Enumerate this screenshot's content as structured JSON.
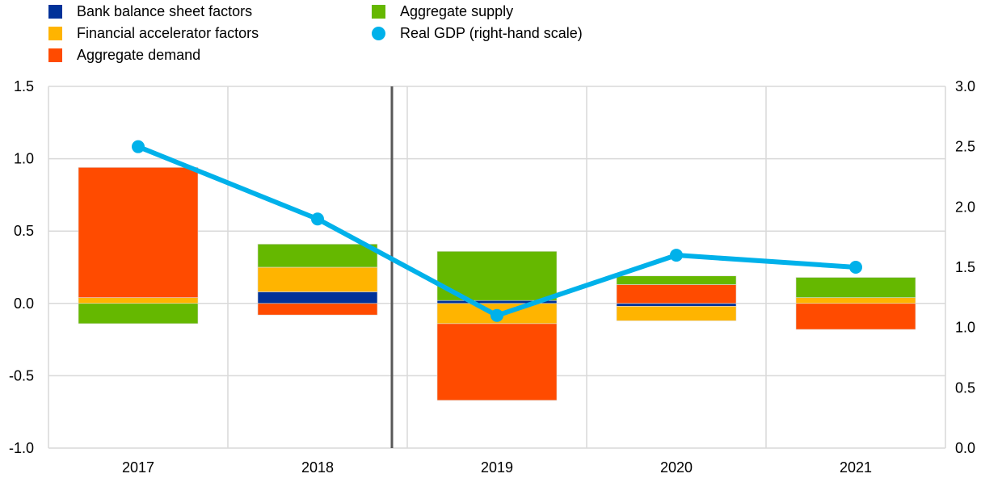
{
  "chart_data": {
    "type": "bar",
    "categories": [
      "2017",
      "2018",
      "2019",
      "2020",
      "2021"
    ],
    "series": [
      {
        "name": "Bank balance sheet factors",
        "color": "#003299",
        "values": [
          0.0,
          0.08,
          0.02,
          -0.02,
          0.0
        ]
      },
      {
        "name": "Financial accelerator factors",
        "color": "#ffb400",
        "values": [
          0.04,
          0.17,
          -0.14,
          -0.1,
          0.04
        ]
      },
      {
        "name": "Aggregate demand",
        "color": "#ff4b00",
        "values": [
          0.9,
          -0.08,
          -0.53,
          0.13,
          -0.18
        ]
      },
      {
        "name": "Aggregate supply",
        "color": "#65b800",
        "values": [
          -0.14,
          0.16,
          0.34,
          0.06,
          0.14
        ]
      }
    ],
    "line": {
      "name": "Real GDP (right-hand scale)",
      "color": "#00b1ea",
      "values": [
        2.5,
        1.9,
        1.1,
        1.6,
        1.5
      ]
    },
    "ylim": [
      -1.0,
      1.5
    ],
    "y2lim": [
      0.0,
      3.0
    ],
    "yticks": [
      "1.5",
      "1.0",
      "0.5",
      "0.0",
      "-0.5",
      "-1.0"
    ],
    "y2ticks": [
      "3.0",
      "2.5",
      "2.0",
      "1.5",
      "1.0",
      "0.5",
      "0.0"
    ],
    "legend": "top-left",
    "grid": true
  }
}
